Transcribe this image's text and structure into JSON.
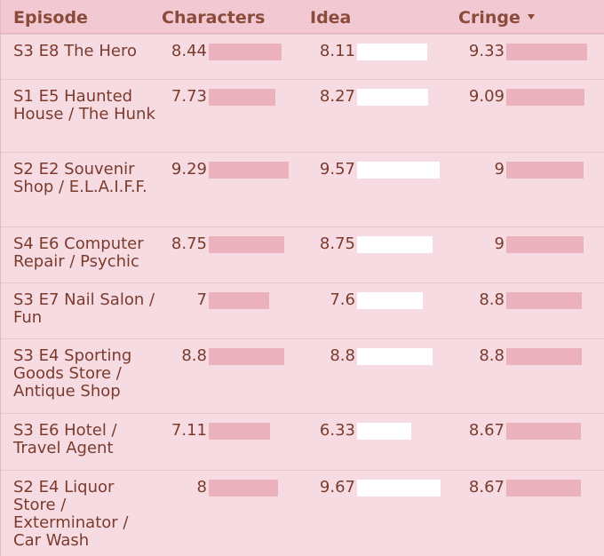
{
  "header": {
    "episode": "Episode",
    "characters": "Characters",
    "idea": "Idea",
    "cringe": "Cringe"
  },
  "colors": {
    "header_bg": "#f2c8d2",
    "body_bg": "#f7dbe3",
    "bar_pink": "#ebb1bd",
    "bar_white": "#ffffff",
    "text": "#7a3b2c"
  },
  "sort": {
    "column": "cringe",
    "direction": "descending",
    "icon": "caret-down-icon"
  },
  "bar_scale_max": 10,
  "rows": [
    {
      "episode": "S3 E8 The Hero",
      "characters": "8.44",
      "idea": "8.11",
      "cringe": "9.33"
    },
    {
      "episode": "S1 E5 Haunted House / The Hunk",
      "characters": "7.73",
      "idea": "8.27",
      "cringe": "9.09"
    },
    {
      "episode": "S2 E2 Souvenir Shop / E.L.A.I.F.F.",
      "characters": "9.29",
      "idea": "9.57",
      "cringe": "9"
    },
    {
      "episode": "S4 E6 Computer Repair / Psychic",
      "characters": "8.75",
      "idea": "8.75",
      "cringe": "9"
    },
    {
      "episode": "S3 E7 Nail Salon / Fun",
      "characters": "7",
      "idea": "7.6",
      "cringe": "8.8"
    },
    {
      "episode": "S3 E4 Sporting Goods Store / Antique Shop",
      "characters": "8.8",
      "idea": "8.8",
      "cringe": "8.8"
    },
    {
      "episode": "S3 E6 Hotel / Travel Agent",
      "characters": "7.11",
      "idea": "6.33",
      "cringe": "8.67"
    },
    {
      "episode": "S2 E4 Liquor Store / Exterminator / Car Wash",
      "characters": "8",
      "idea": "9.67",
      "cringe": "8.67"
    }
  ]
}
